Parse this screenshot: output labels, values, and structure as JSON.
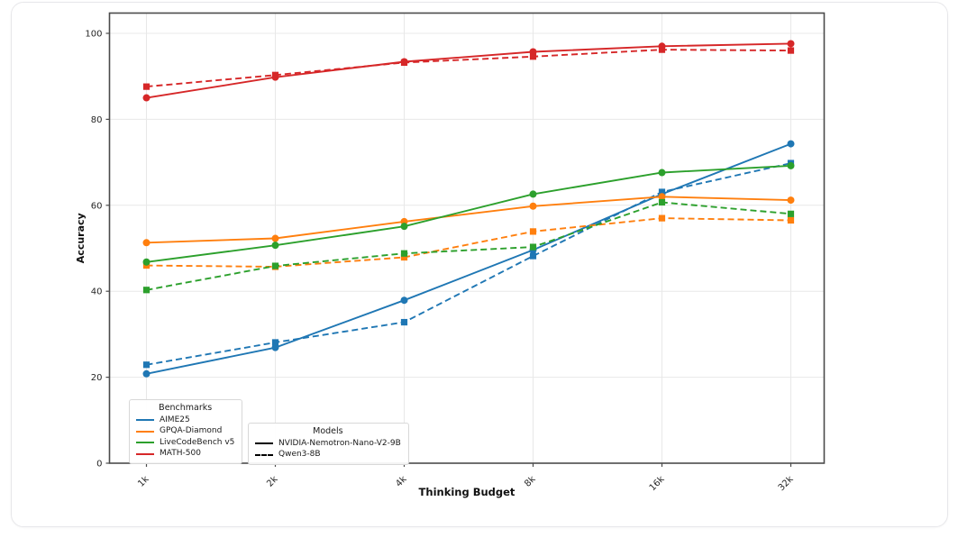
{
  "chart_data": {
    "type": "line",
    "title": "",
    "xlabel": "Thinking Budget",
    "ylabel": "Accuracy",
    "x_categories": [
      "1k",
      "2k",
      "4k",
      "8k",
      "16k",
      "32k"
    ],
    "y_ticks": [
      0,
      20,
      40,
      60,
      80,
      100
    ],
    "ylim": [
      0,
      105
    ],
    "grid": true,
    "legend_position": "lower left",
    "legends": {
      "benchmarks": {
        "title": "Benchmarks",
        "entries": [
          {
            "label": "AIME25",
            "color": "#1f77b4"
          },
          {
            "label": "GPQA-Diamond",
            "color": "#ff7f0e"
          },
          {
            "label": "LiveCodeBench v5",
            "color": "#2ca02c"
          },
          {
            "label": "MATH-500",
            "color": "#d62728"
          }
        ]
      },
      "models": {
        "title": "Models",
        "entries": [
          {
            "label": "NVIDIA-Nemotron-Nano-V2-9B",
            "style": "solid",
            "color": "#000000"
          },
          {
            "label": "Qwen3-8B",
            "style": "dashed",
            "color": "#000000"
          }
        ]
      }
    },
    "series": [
      {
        "benchmark": "AIME25",
        "model": "NVIDIA-Nemotron-Nano-V2-9B",
        "color": "#1f77b4",
        "line": "solid",
        "marker": "circle",
        "values": [
          20.8,
          26.9,
          37.9,
          49.6,
          62.6,
          74.3
        ]
      },
      {
        "benchmark": "AIME25",
        "model": "Qwen3-8B",
        "color": "#1f77b4",
        "line": "dashed",
        "marker": "square",
        "values": [
          22.9,
          28.1,
          32.8,
          48.2,
          63.1,
          69.8
        ]
      },
      {
        "benchmark": "GPQA-Diamond",
        "model": "NVIDIA-Nemotron-Nano-V2-9B",
        "color": "#ff7f0e",
        "line": "solid",
        "marker": "circle",
        "values": [
          51.3,
          52.3,
          56.2,
          59.8,
          62.0,
          61.2
        ]
      },
      {
        "benchmark": "GPQA-Diamond",
        "model": "Qwen3-8B",
        "color": "#ff7f0e",
        "line": "dashed",
        "marker": "square",
        "values": [
          46.0,
          45.7,
          47.9,
          53.9,
          57.0,
          56.5
        ]
      },
      {
        "benchmark": "LiveCodeBench v5",
        "model": "NVIDIA-Nemotron-Nano-V2-9B",
        "color": "#2ca02c",
        "line": "solid",
        "marker": "circle",
        "values": [
          46.8,
          50.7,
          55.1,
          62.6,
          67.6,
          69.2
        ]
      },
      {
        "benchmark": "LiveCodeBench v5",
        "model": "Qwen3-8B",
        "color": "#2ca02c",
        "line": "dashed",
        "marker": "square",
        "values": [
          40.3,
          45.9,
          48.8,
          50.3,
          60.7,
          58.0
        ]
      },
      {
        "benchmark": "MATH-500",
        "model": "NVIDIA-Nemotron-Nano-V2-9B",
        "color": "#d62728",
        "line": "solid",
        "marker": "circle",
        "values": [
          85.0,
          89.8,
          93.4,
          95.7,
          97.0,
          97.6
        ]
      },
      {
        "benchmark": "MATH-500",
        "model": "Qwen3-8B",
        "color": "#d62728",
        "line": "dashed",
        "marker": "square",
        "values": [
          87.6,
          90.3,
          93.2,
          94.6,
          96.2,
          96.0
        ]
      }
    ]
  }
}
